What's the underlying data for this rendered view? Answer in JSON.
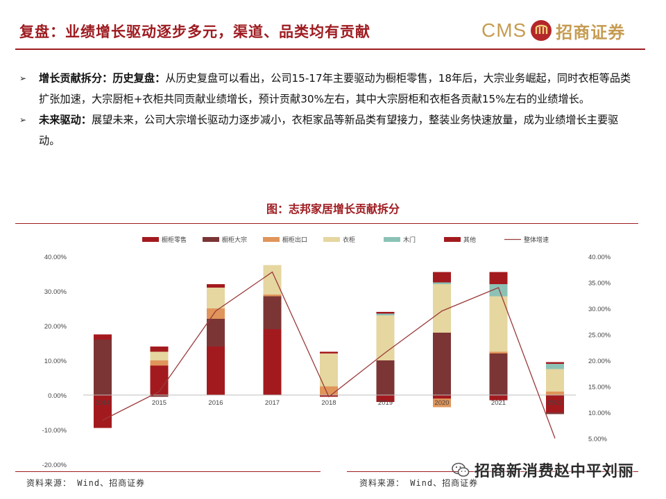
{
  "header": {
    "title": "复盘：业绩增长驱动逐步多元，渠道、品类均有贡献",
    "logo_latin": "CMS",
    "logo_cn": "招商证券"
  },
  "bullets": [
    {
      "label": "增长贡献拆分：历史复盘：",
      "text": "从历史复盘可以看出，公司15-17年主要驱动为橱柜零售，18年后，大宗业务崛起，同时衣柜等品类扩张加速，大宗厨柜+衣柜共同贡献业绩增长，预计贡献30%左右，其中大宗厨柜和衣柜各贡献15%左右的业绩增长。"
    },
    {
      "label": "未来驱动：",
      "text": "展望未来，公司大宗增长驱动力逐步减小，衣柜家品等新品类有望接力，整装业务快速放量，成为业绩增长主要驱动。"
    }
  ],
  "chart_title": "图：志邦家居增长贡献拆分",
  "chart_data": {
    "type": "bar",
    "stacked": true,
    "categories": [
      "2014",
      "2015",
      "2016",
      "2017",
      "2018",
      "2019",
      "2020",
      "2021",
      "2022"
    ],
    "series": [
      {
        "name": "橱柜零售",
        "color": "#a31a1e",
        "values": [
          -9.5,
          8.5,
          14.0,
          19.0,
          -0.5,
          -2.0,
          -1.0,
          -1.5,
          -5.0
        ]
      },
      {
        "name": "橱柜大宗",
        "color": "#7b3535",
        "values": [
          16.0,
          -0.5,
          8.0,
          9.5,
          0.0,
          10.0,
          18.0,
          12.0,
          -0.5
        ]
      },
      {
        "name": "橱柜出口",
        "color": "#e0955a",
        "values": [
          0.0,
          1.5,
          3.0,
          0.5,
          2.5,
          0.0,
          -2.5,
          0.5,
          1.0
        ]
      },
      {
        "name": "衣柜",
        "color": "#e6d6a0",
        "values": [
          0.0,
          2.5,
          6.0,
          8.5,
          9.5,
          13.0,
          14.0,
          16.0,
          6.5
        ]
      },
      {
        "name": "木门",
        "color": "#8cc2b6",
        "values": [
          0.0,
          0.0,
          0.0,
          0.0,
          0.0,
          0.5,
          0.5,
          3.5,
          1.5
        ]
      },
      {
        "name": "其他",
        "color": "#a31a1e",
        "values": [
          1.5,
          1.5,
          1.0,
          0.0,
          0.5,
          0.5,
          3.0,
          3.5,
          0.5
        ]
      }
    ],
    "line": {
      "name": "整体增速",
      "color": "#9a3a3a",
      "values": [
        8.5,
        14.0,
        29.5,
        37.0,
        13.0,
        21.5,
        29.5,
        34.0,
        5.0
      ]
    },
    "left_axis": {
      "min": -20,
      "max": 40,
      "ticks": [
        "40.00%",
        "30.00%",
        "20.00%",
        "10.00%",
        "0.00%",
        "-10.00%",
        "-20.00%"
      ]
    },
    "right_axis": {
      "min": 0,
      "max": 40,
      "ticks": [
        "40.00%",
        "35.00%",
        "30.00%",
        "25.00%",
        "20.00%",
        "15.00%",
        "10.00%",
        "5.00%"
      ]
    },
    "legend_position": "top"
  },
  "sources": [
    "资料来源： Wind、招商证券",
    "资料来源： Wind、招商证券"
  ],
  "watermark": "招商新消费赵中平刘丽"
}
